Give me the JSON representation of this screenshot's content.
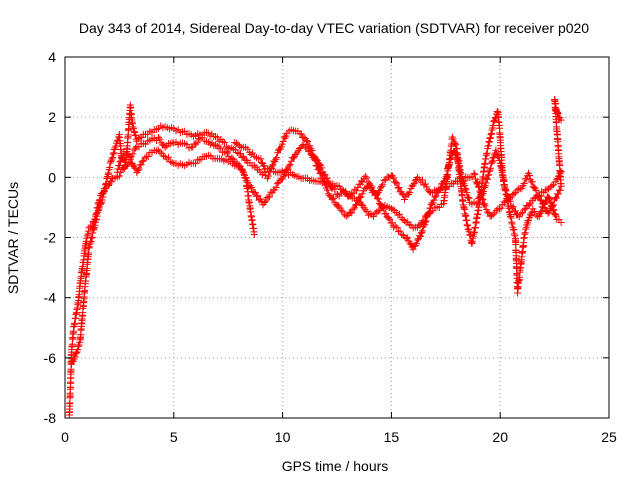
{
  "chart_data": {
    "type": "scatter",
    "title": "Day 343 of 2014, Sidereal Day-to-day VTEC variation (SDTVAR) for receiver p020",
    "xlabel": "GPS time / hours",
    "ylabel": "SDTVAR / TECUs",
    "xlim": [
      0,
      25
    ],
    "ylim": [
      -8,
      4
    ],
    "xticks": [
      0,
      5,
      10,
      15,
      20,
      25
    ],
    "yticks": [
      -8,
      -6,
      -4,
      -2,
      0,
      2,
      4
    ],
    "xtick_labels": [
      "0",
      "5",
      "10",
      "15",
      "20",
      "25"
    ],
    "ytick_labels": [
      "-8",
      "-6",
      "-4",
      "-2",
      "0",
      "2",
      "4"
    ],
    "grid": true,
    "marker": "+",
    "color": "#ff0000",
    "series": [
      {
        "name": "SDTVAR",
        "curves": [
          [
            [
              0.2,
              -7.9
            ],
            [
              0.25,
              -7.0
            ],
            [
              0.3,
              -5.8
            ],
            [
              0.4,
              -5.0
            ],
            [
              0.5,
              -4.6
            ],
            [
              0.6,
              -4.2
            ],
            [
              0.7,
              -3.5
            ],
            [
              0.8,
              -3.0
            ],
            [
              0.9,
              -2.5
            ],
            [
              1.0,
              -2.0
            ],
            [
              1.1,
              -1.7
            ],
            [
              1.25,
              -1.6
            ],
            [
              1.4,
              -1.3
            ],
            [
              1.6,
              -0.7
            ],
            [
              1.8,
              -0.4
            ],
            [
              2.0,
              -0.3
            ],
            [
              2.2,
              0.0
            ],
            [
              2.5,
              0.1
            ],
            [
              2.8,
              0.4
            ],
            [
              3.0,
              0.6
            ],
            [
              3.3,
              0.2
            ],
            [
              3.6,
              0.6
            ],
            [
              3.9,
              0.8
            ],
            [
              4.2,
              0.9
            ],
            [
              4.6,
              0.7
            ],
            [
              5.0,
              0.5
            ],
            [
              5.5,
              0.4
            ],
            [
              6.0,
              0.5
            ],
            [
              6.5,
              0.7
            ],
            [
              7.0,
              0.6
            ],
            [
              7.5,
              0.5
            ],
            [
              8.0,
              0.4
            ],
            [
              8.3,
              0.0
            ],
            [
              8.5,
              -1.0
            ],
            [
              8.7,
              -1.9
            ]
          ],
          [
            [
              0.3,
              -6.2
            ],
            [
              0.5,
              -5.9
            ],
            [
              0.7,
              -5.4
            ],
            [
              0.9,
              -3.8
            ],
            [
              1.1,
              -2.4
            ],
            [
              1.3,
              -1.8
            ],
            [
              1.5,
              -1.2
            ],
            [
              1.8,
              -0.5
            ],
            [
              2.0,
              0.2
            ],
            [
              2.3,
              1.0
            ],
            [
              2.5,
              1.4
            ],
            [
              2.6,
              0.7
            ],
            [
              2.8,
              0.4
            ],
            [
              3.0,
              2.4
            ],
            [
              3.1,
              1.8
            ],
            [
              3.3,
              1.2
            ],
            [
              3.6,
              1.4
            ],
            [
              3.9,
              1.5
            ],
            [
              4.2,
              1.6
            ],
            [
              4.5,
              1.7
            ],
            [
              5.0,
              1.6
            ],
            [
              5.5,
              1.5
            ],
            [
              6.0,
              1.4
            ],
            [
              6.5,
              1.5
            ],
            [
              7.0,
              1.3
            ],
            [
              7.5,
              1.0
            ],
            [
              8.0,
              0.8
            ],
            [
              8.4,
              0.5
            ],
            [
              8.7,
              0.4
            ],
            [
              9.0,
              0.2
            ],
            [
              9.3,
              0.0
            ],
            [
              9.6,
              0.5
            ],
            [
              9.9,
              1.0
            ],
            [
              10.2,
              1.5
            ],
            [
              10.5,
              1.6
            ],
            [
              10.8,
              1.5
            ],
            [
              11.1,
              1.2
            ],
            [
              11.4,
              0.8
            ],
            [
              11.7,
              0.4
            ],
            [
              12.0,
              0.0
            ],
            [
              12.3,
              -0.4
            ],
            [
              12.6,
              -0.6
            ],
            [
              12.9,
              -0.5
            ],
            [
              13.2,
              -0.7
            ],
            [
              13.5,
              -0.8
            ],
            [
              13.8,
              -1.1
            ],
            [
              14.1,
              -1.3
            ],
            [
              14.4,
              -1.1
            ],
            [
              14.7,
              -0.9
            ],
            [
              15.0,
              -1.0
            ],
            [
              15.3,
              -1.2
            ],
            [
              15.6,
              -1.4
            ],
            [
              15.9,
              -1.6
            ],
            [
              16.2,
              -1.7
            ],
            [
              16.5,
              -1.4
            ],
            [
              16.8,
              -1.1
            ],
            [
              17.1,
              -1.0
            ],
            [
              17.4,
              -0.9
            ],
            [
              17.6,
              0.2
            ],
            [
              17.8,
              1.3
            ],
            [
              18.0,
              1.0
            ],
            [
              18.1,
              0.3
            ],
            [
              18.3,
              -0.9
            ],
            [
              18.5,
              -1.6
            ],
            [
              18.7,
              -2.2
            ],
            [
              18.9,
              -1.5
            ],
            [
              19.1,
              -0.6
            ],
            [
              19.3,
              0.5
            ],
            [
              19.5,
              1.2
            ],
            [
              19.7,
              1.8
            ],
            [
              19.9,
              2.2
            ],
            [
              20.0,
              1.3
            ],
            [
              20.1,
              0.2
            ],
            [
              20.3,
              -0.7
            ],
            [
              20.5,
              -1.4
            ],
            [
              20.7,
              -2.0
            ],
            [
              20.8,
              -3.8
            ],
            [
              20.9,
              -3.2
            ],
            [
              21.1,
              -2.0
            ],
            [
              21.3,
              -1.4
            ],
            [
              21.5,
              -1.1
            ],
            [
              21.8,
              -1.3
            ],
            [
              22.0,
              -0.9
            ],
            [
              22.2,
              -0.6
            ],
            [
              22.4,
              -1.0
            ],
            [
              22.6,
              -1.4
            ],
            [
              22.8,
              -1.5
            ]
          ],
          [
            [
              2.4,
              0.2
            ],
            [
              2.7,
              0.8
            ],
            [
              3.0,
              0.7
            ],
            [
              3.3,
              1.0
            ],
            [
              3.6,
              1.1
            ],
            [
              3.9,
              1.2
            ],
            [
              4.3,
              1.3
            ],
            [
              4.6,
              1.0
            ],
            [
              5.0,
              1.2
            ],
            [
              5.4,
              1.1
            ],
            [
              5.8,
              1.0
            ],
            [
              6.2,
              1.3
            ],
            [
              6.6,
              1.2
            ],
            [
              7.0,
              1.0
            ],
            [
              7.4,
              0.8
            ],
            [
              7.8,
              0.5
            ],
            [
              8.1,
              0.3
            ],
            [
              8.4,
              -0.2
            ],
            [
              8.8,
              -0.6
            ],
            [
              9.1,
              -0.9
            ],
            [
              9.4,
              -0.6
            ],
            [
              9.7,
              -0.3
            ],
            [
              10.0,
              0.0
            ],
            [
              10.3,
              0.4
            ],
            [
              10.6,
              0.8
            ],
            [
              10.9,
              1.1
            ],
            [
              11.2,
              0.9
            ],
            [
              11.5,
              0.5
            ],
            [
              11.8,
              0.0
            ],
            [
              12.1,
              -0.5
            ],
            [
              12.4,
              -0.8
            ],
            [
              12.7,
              -1.1
            ],
            [
              13.0,
              -1.3
            ],
            [
              13.3,
              -1.0
            ],
            [
              13.6,
              -0.6
            ],
            [
              13.9,
              -0.3
            ],
            [
              14.2,
              -0.5
            ],
            [
              14.5,
              -0.9
            ],
            [
              14.8,
              -1.3
            ],
            [
              15.1,
              -1.6
            ],
            [
              15.4,
              -1.8
            ],
            [
              15.7,
              -2.0
            ],
            [
              16.0,
              -2.4
            ],
            [
              16.3,
              -2.0
            ],
            [
              16.6,
              -1.4
            ],
            [
              16.9,
              -0.8
            ],
            [
              17.2,
              -0.4
            ],
            [
              17.5,
              0.0
            ],
            [
              17.7,
              0.6
            ],
            [
              17.9,
              0.9
            ],
            [
              18.1,
              0.5
            ],
            [
              18.3,
              -0.2
            ],
            [
              18.6,
              -0.8
            ],
            [
              18.9,
              -0.9
            ],
            [
              19.2,
              -0.5
            ],
            [
              19.5,
              0.2
            ],
            [
              19.8,
              0.9
            ],
            [
              20.0,
              0.5
            ],
            [
              20.2,
              -0.3
            ],
            [
              20.5,
              -0.9
            ],
            [
              20.8,
              -1.3
            ],
            [
              21.1,
              -1.1
            ],
            [
              21.4,
              -0.8
            ],
            [
              21.7,
              -0.6
            ],
            [
              22.0,
              -0.5
            ],
            [
              22.3,
              -0.3
            ],
            [
              22.6,
              -0.1
            ],
            [
              22.8,
              0.2
            ]
          ],
          [
            [
              7.8,
              1.2
            ],
            [
              8.1,
              1.0
            ],
            [
              8.4,
              0.9
            ],
            [
              8.7,
              0.7
            ],
            [
              9.0,
              0.6
            ],
            [
              9.2,
              0.3
            ],
            [
              12.6,
              -0.3
            ],
            [
              13.0,
              -0.6
            ],
            [
              13.4,
              -0.4
            ],
            [
              13.8,
              0.0
            ],
            [
              14.0,
              -0.2
            ],
            [
              14.3,
              -0.6
            ],
            [
              14.6,
              -0.2
            ],
            [
              15.0,
              0.1
            ],
            [
              15.3,
              -0.3
            ],
            [
              15.6,
              -0.7
            ],
            [
              15.9,
              -0.4
            ],
            [
              16.2,
              0.0
            ],
            [
              16.5,
              -0.2
            ],
            [
              16.8,
              -0.5
            ],
            [
              18.8,
              0.1
            ],
            [
              19.0,
              -0.3
            ],
            [
              19.3,
              -1.0
            ],
            [
              19.6,
              -1.3
            ],
            [
              21.0,
              -0.3
            ],
            [
              21.3,
              0.1
            ],
            [
              21.6,
              -0.4
            ],
            [
              21.9,
              -0.8
            ],
            [
              22.2,
              -1.2
            ],
            [
              22.5,
              -0.8
            ],
            [
              22.8,
              -0.3
            ],
            [
              22.5,
              2.6
            ],
            [
              22.6,
              2.2
            ],
            [
              22.7,
              2.0
            ],
            [
              22.8,
              1.9
            ]
          ]
        ]
      }
    ]
  }
}
